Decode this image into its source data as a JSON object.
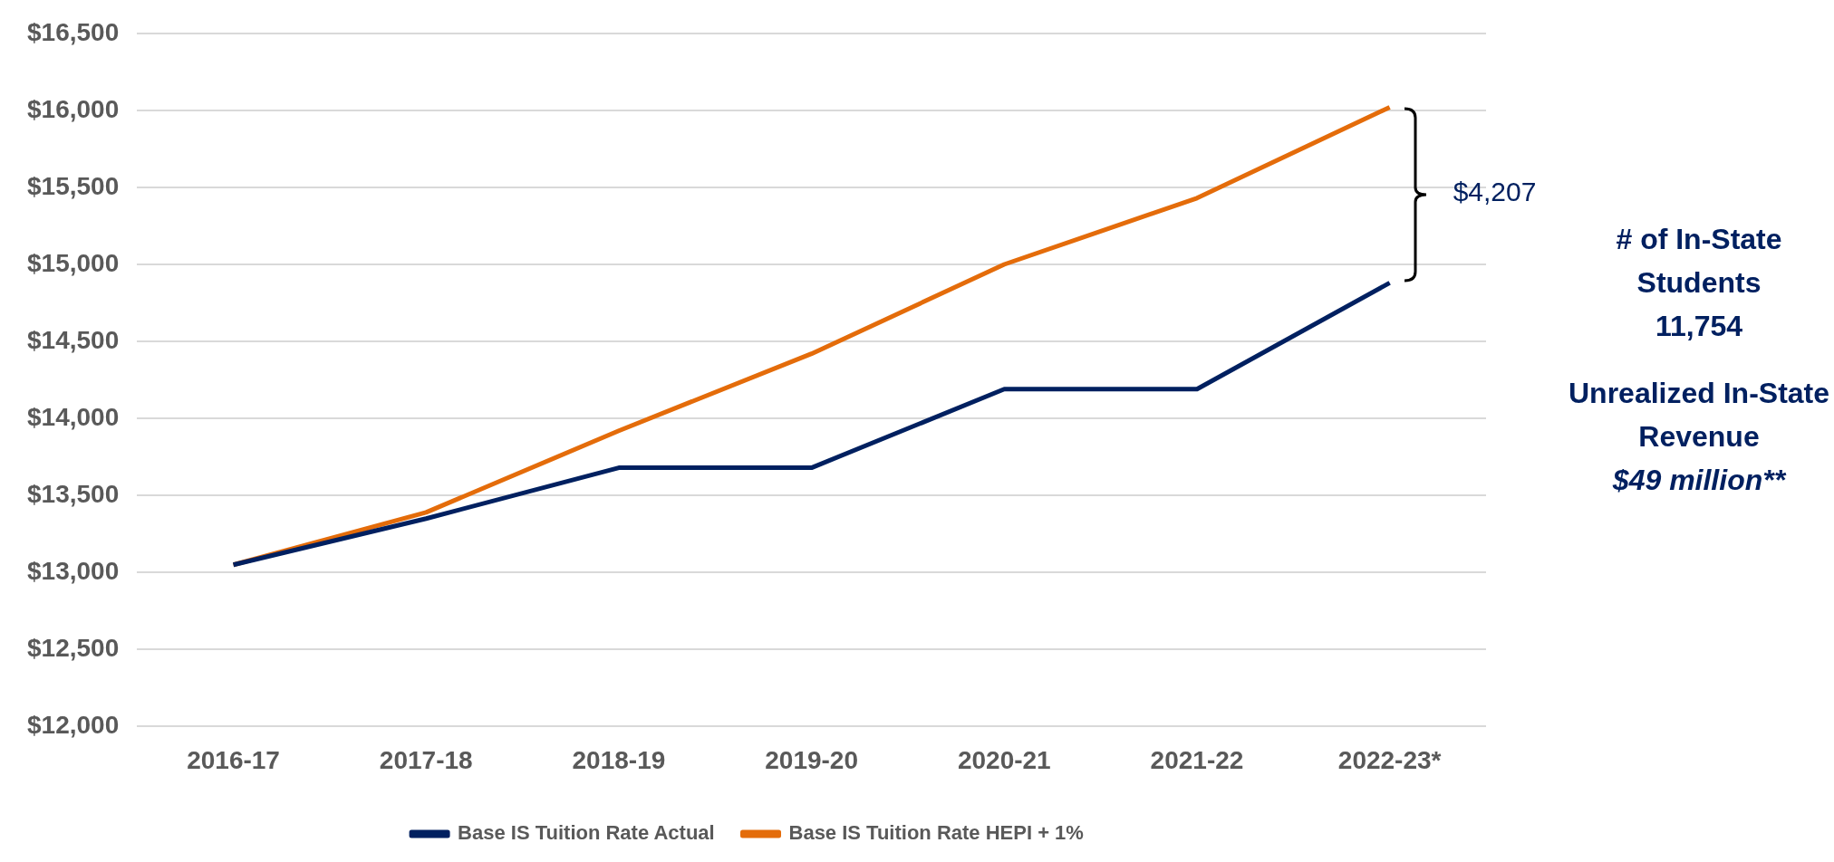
{
  "chart_data": {
    "type": "line",
    "categories": [
      "2016-17",
      "2017-18",
      "2018-19",
      "2019-20",
      "2020-21",
      "2021-22",
      "2022-23*"
    ],
    "series": [
      {
        "name": "Base IS Tuition Rate Actual",
        "color": "#002060",
        "values": [
          13050,
          13350,
          13680,
          13680,
          14190,
          14190,
          14880
        ]
      },
      {
        "name": "Base IS Tuition Rate HEPI + 1%",
        "color": "#e46c0a",
        "values": [
          13050,
          13390,
          13920,
          14420,
          15000,
          15430,
          16020
        ]
      }
    ],
    "ylim": [
      12000,
      16500
    ],
    "yticks": [
      {
        "value": 12000,
        "label": "$12,000"
      },
      {
        "value": 12500,
        "label": "$12,500"
      },
      {
        "value": 13000,
        "label": "$13,000"
      },
      {
        "value": 13500,
        "label": "$13,500"
      },
      {
        "value": 14000,
        "label": "$14,000"
      },
      {
        "value": 14500,
        "label": "$14,500"
      },
      {
        "value": 15000,
        "label": "$15,000"
      },
      {
        "value": 15500,
        "label": "$15,500"
      },
      {
        "value": 16000,
        "label": "$16,000"
      },
      {
        "value": 16500,
        "label": "$16,500"
      }
    ],
    "grid": "y",
    "legend": "bottom",
    "marker": "none",
    "line_style": "solid",
    "annotations": [
      "$4,207",
      "# of In-State Students",
      "11,754",
      "Unrealized In-State Revenue",
      "$49 million**"
    ]
  }
}
